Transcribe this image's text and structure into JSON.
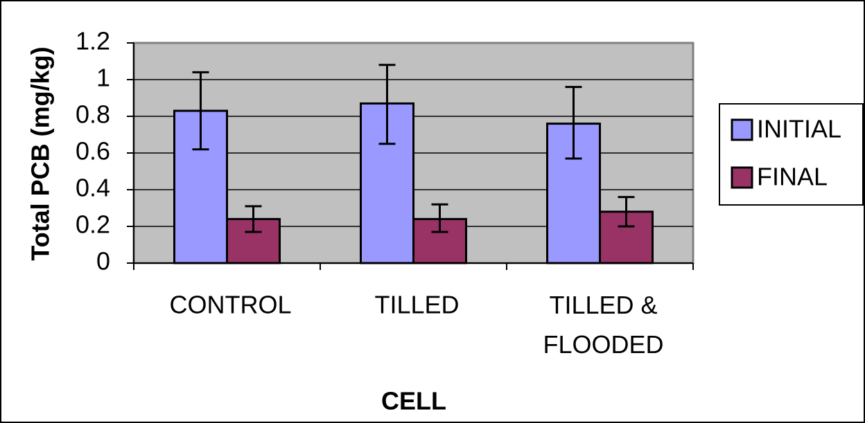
{
  "chart_data": {
    "type": "bar",
    "title": "",
    "xlabel": "CELL",
    "ylabel": "Total PCB (mg/kg)",
    "ylim": [
      0,
      1.2
    ],
    "yticks": [
      0,
      0.2,
      0.4,
      0.6,
      0.8,
      1,
      1.2
    ],
    "ytick_labels": [
      "0",
      "0.2",
      "0.4",
      "0.6",
      "0.8",
      "1",
      "1.2"
    ],
    "categories": [
      "CONTROL",
      "TILLED",
      "TILLED & FLOODED"
    ],
    "series": [
      {
        "name": "INITIAL",
        "color": "#9999ff",
        "values": [
          0.83,
          0.87,
          0.76
        ],
        "error_low": [
          0.62,
          0.65,
          0.57
        ],
        "error_high": [
          1.04,
          1.08,
          0.96
        ]
      },
      {
        "name": "FINAL",
        "color": "#993366",
        "values": [
          0.24,
          0.24,
          0.28
        ],
        "error_low": [
          0.17,
          0.17,
          0.2
        ],
        "error_high": [
          0.31,
          0.32,
          0.36
        ]
      }
    ],
    "grid": true,
    "plot_background": "#c0c0c0",
    "legend_position": "right"
  }
}
